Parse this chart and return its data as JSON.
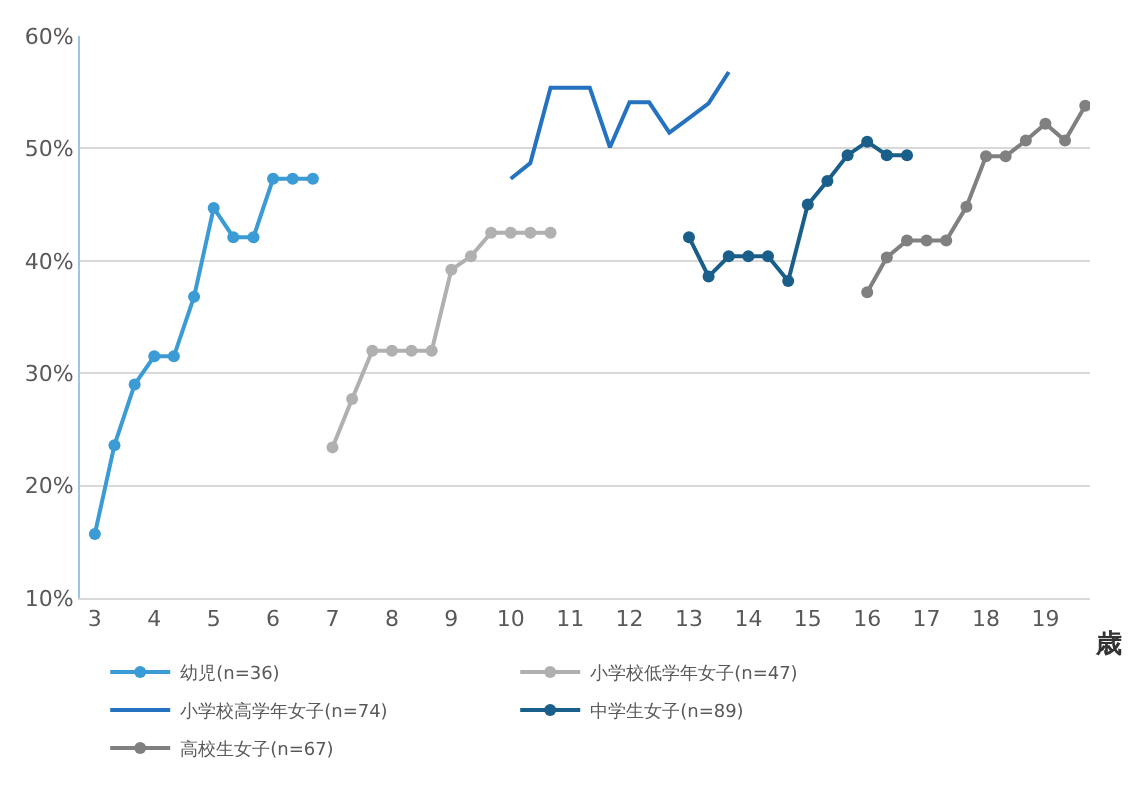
{
  "chart_data": {
    "type": "line",
    "xlabel": "歳",
    "xlim": [
      2.75,
      19.75
    ],
    "xticks": [
      3,
      4,
      5,
      6,
      7,
      8,
      9,
      10,
      11,
      12,
      13,
      14,
      15,
      16,
      17,
      18,
      19
    ],
    "ylim": [
      10,
      60
    ],
    "yticks": [
      {
        "value": 10,
        "label": "10%"
      },
      {
        "value": 20,
        "label": "20%"
      },
      {
        "value": 30,
        "label": "30%"
      },
      {
        "value": 40,
        "label": "40%"
      },
      {
        "value": 50,
        "label": "50%"
      },
      {
        "value": 60,
        "label": "60%"
      }
    ],
    "grid": "y",
    "legend": "bottom",
    "line_style": "solid",
    "series": [
      {
        "name": "幼児(n=36)",
        "color": "#3b9bd4",
        "marker": "circle",
        "x": [
          3,
          3.33,
          3.67,
          4,
          4.33,
          4.67,
          5,
          5.33,
          5.67,
          6,
          6.33,
          6.67
        ],
        "values": [
          15.7,
          23.6,
          29.0,
          31.5,
          31.5,
          36.8,
          44.7,
          42.1,
          42.1,
          47.3,
          47.3,
          47.3
        ]
      },
      {
        "name": "小学校低学年女子(n=47)",
        "color": "#b0b0b0",
        "marker": "circle",
        "x": [
          7,
          7.33,
          7.67,
          8,
          8.33,
          8.67,
          9,
          9.33,
          9.67,
          10,
          10.33,
          10.67
        ],
        "values": [
          23.4,
          27.7,
          32.0,
          32.0,
          32.0,
          32.0,
          39.2,
          40.4,
          42.5,
          42.5,
          42.5,
          42.5
        ]
      },
      {
        "name": "小学校高学年女子(n=74)",
        "color": "#2472c0",
        "marker": "none",
        "x": [
          10,
          10.33,
          10.67,
          11,
          11.33,
          11.67,
          12,
          12.33,
          12.67,
          13,
          13.33,
          13.67
        ],
        "values": [
          47.3,
          48.7,
          55.4,
          55.4,
          55.4,
          50.1,
          54.1,
          54.1,
          51.4,
          52.7,
          54.0,
          56.8
        ]
      },
      {
        "name": "中学生女子(n=89)",
        "color": "#1a5e8a",
        "marker": "circle",
        "x": [
          13,
          13.33,
          13.67,
          14,
          14.33,
          14.67,
          15,
          15.33,
          15.67,
          16,
          16.33,
          16.67
        ],
        "values": [
          42.1,
          38.6,
          40.4,
          40.4,
          40.4,
          38.2,
          45.0,
          47.1,
          49.4,
          50.6,
          49.4,
          49.4
        ]
      },
      {
        "name": "高校生女子(n=67)",
        "color": "#808080",
        "marker": "circle",
        "x": [
          16,
          16.33,
          16.67,
          17,
          17.33,
          17.67,
          18,
          18.33,
          18.67,
          19,
          19.33,
          19.67
        ],
        "values": [
          37.2,
          40.3,
          41.8,
          41.8,
          41.8,
          44.8,
          49.3,
          49.3,
          50.7,
          52.2,
          50.7,
          53.8
        ]
      }
    ]
  }
}
